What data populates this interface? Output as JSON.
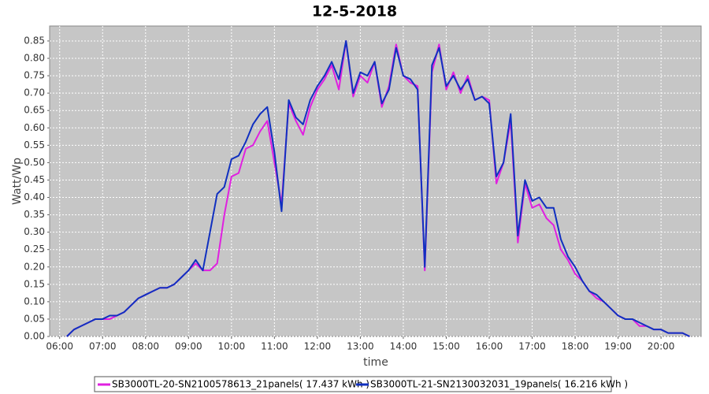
{
  "chart_data": {
    "type": "line",
    "title": "12-5-2018",
    "x_label": "time",
    "y_label": "Watt/Wp",
    "x": [
      "06:10",
      "06:20",
      "06:30",
      "06:40",
      "06:50",
      "07:00",
      "07:10",
      "07:20",
      "07:30",
      "07:40",
      "07:50",
      "08:00",
      "08:10",
      "08:20",
      "08:30",
      "08:40",
      "08:50",
      "09:00",
      "09:10",
      "09:20",
      "09:30",
      "09:40",
      "09:50",
      "10:00",
      "10:10",
      "10:20",
      "10:30",
      "10:40",
      "10:50",
      "11:00",
      "11:10",
      "11:20",
      "11:30",
      "11:40",
      "11:50",
      "12:00",
      "12:10",
      "12:20",
      "12:30",
      "12:40",
      "12:50",
      "13:00",
      "13:10",
      "13:20",
      "13:30",
      "13:40",
      "13:50",
      "14:00",
      "14:10",
      "14:20",
      "14:30",
      "14:40",
      "14:50",
      "15:00",
      "15:10",
      "15:20",
      "15:30",
      "15:40",
      "15:50",
      "16:00",
      "16:10",
      "16:20",
      "16:30",
      "16:40",
      "16:50",
      "17:00",
      "17:10",
      "17:20",
      "17:30",
      "17:40",
      "17:50",
      "18:00",
      "18:10",
      "18:20",
      "18:30",
      "18:40",
      "18:50",
      "19:00",
      "19:10",
      "19:20",
      "19:30",
      "19:40",
      "19:50",
      "20:00",
      "20:10",
      "20:20",
      "20:30",
      "20:40"
    ],
    "series": [
      {
        "name": "SB3000TL-20-SN2100578613_21panels( 17.437 kWh )",
        "color": "#e020e0",
        "values": [
          0.0,
          0.02,
          0.03,
          0.04,
          0.05,
          0.05,
          0.05,
          0.06,
          0.07,
          0.09,
          0.11,
          0.12,
          0.13,
          0.14,
          0.14,
          0.15,
          0.17,
          0.19,
          0.21,
          0.19,
          0.19,
          0.21,
          0.35,
          0.46,
          0.47,
          0.54,
          0.55,
          0.59,
          0.62,
          0.5,
          0.38,
          0.67,
          0.62,
          0.58,
          0.66,
          0.71,
          0.74,
          0.78,
          0.71,
          0.85,
          0.69,
          0.75,
          0.73,
          0.79,
          0.66,
          0.72,
          0.84,
          0.75,
          0.73,
          0.72,
          0.19,
          0.76,
          0.84,
          0.71,
          0.76,
          0.7,
          0.75,
          0.68,
          0.69,
          0.68,
          0.44,
          0.5,
          0.62,
          0.27,
          0.44,
          0.37,
          0.38,
          0.34,
          0.32,
          0.25,
          0.22,
          0.18,
          0.16,
          0.13,
          0.11,
          0.1,
          0.08,
          0.06,
          0.05,
          0.05,
          0.03,
          0.03,
          0.02,
          0.02,
          0.01,
          0.01,
          0.01,
          0.0
        ]
      },
      {
        "name": "SB3000TL-21-SN2130032031_19panels( 16.216 kWh )",
        "color": "#1030c0",
        "values": [
          0.0,
          0.02,
          0.03,
          0.04,
          0.05,
          0.05,
          0.06,
          0.06,
          0.07,
          0.09,
          0.11,
          0.12,
          0.13,
          0.14,
          0.14,
          0.15,
          0.17,
          0.19,
          0.22,
          0.19,
          0.3,
          0.41,
          0.43,
          0.51,
          0.52,
          0.56,
          0.61,
          0.64,
          0.66,
          0.53,
          0.36,
          0.68,
          0.63,
          0.61,
          0.68,
          0.72,
          0.75,
          0.79,
          0.74,
          0.85,
          0.7,
          0.76,
          0.75,
          0.79,
          0.67,
          0.71,
          0.83,
          0.75,
          0.74,
          0.71,
          0.2,
          0.78,
          0.83,
          0.72,
          0.75,
          0.71,
          0.74,
          0.68,
          0.69,
          0.67,
          0.46,
          0.5,
          0.64,
          0.29,
          0.45,
          0.39,
          0.4,
          0.37,
          0.37,
          0.28,
          0.23,
          0.2,
          0.16,
          0.13,
          0.12,
          0.1,
          0.08,
          0.06,
          0.05,
          0.05,
          0.04,
          0.03,
          0.02,
          0.02,
          0.01,
          0.01,
          0.01,
          0.0
        ]
      }
    ],
    "xlim": [
      "05:46",
      "20:56"
    ],
    "xticks": [
      "06:00",
      "07:00",
      "08:00",
      "09:00",
      "10:00",
      "11:00",
      "12:00",
      "13:00",
      "14:00",
      "15:00",
      "16:00",
      "17:00",
      "18:00",
      "19:00",
      "20:00"
    ],
    "ylim": [
      0,
      0.893
    ],
    "yticks": [
      {
        "value": 0,
        "label": "0.00"
      },
      {
        "value": 0.05,
        "label": "0.05"
      },
      {
        "value": 0.1,
        "label": "0.10"
      },
      {
        "value": 0.15,
        "label": "0.15"
      },
      {
        "value": 0.2,
        "label": "0.20"
      },
      {
        "value": 0.25,
        "label": "0.25"
      },
      {
        "value": 0.3,
        "label": "0.30"
      },
      {
        "value": 0.35,
        "label": "0.35"
      },
      {
        "value": 0.4,
        "label": "0.40"
      },
      {
        "value": 0.45,
        "label": "0.45"
      },
      {
        "value": 0.5,
        "label": "0.50"
      },
      {
        "value": 0.55,
        "label": "0.55"
      },
      {
        "value": 0.6,
        "label": "0.60"
      },
      {
        "value": 0.65,
        "label": "0.65"
      },
      {
        "value": 0.7,
        "label": "0.70"
      },
      {
        "value": 0.75,
        "label": "0.75"
      },
      {
        "value": 0.8,
        "label": "0.80"
      },
      {
        "value": 0.85,
        "label": "0.85"
      }
    ],
    "grid": true
  }
}
